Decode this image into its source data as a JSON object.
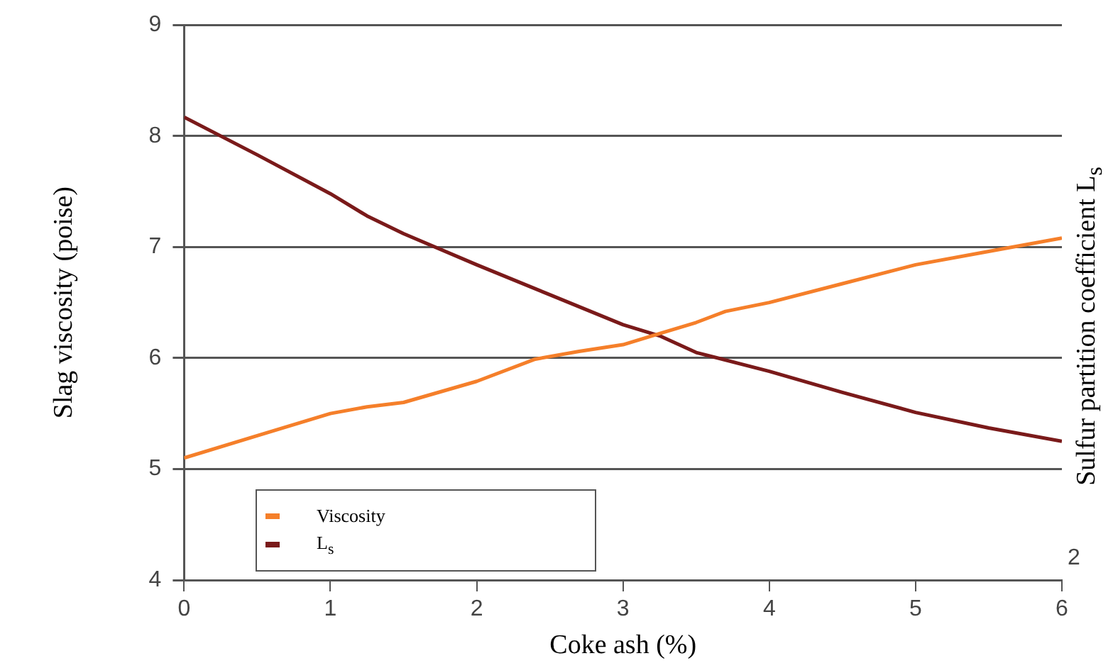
{
  "chart_data": {
    "type": "line",
    "xlabel": "Coke ash (%)",
    "ylabel": "Slag viscosity (poise)",
    "y2label": "Sulfur partition coefficient L$_{s}$",
    "xlim": [
      0,
      6
    ],
    "xticks": [
      0,
      1,
      2,
      3,
      4,
      5,
      6
    ],
    "ylim": [
      4,
      9
    ],
    "yticks": [
      4,
      5,
      6,
      7,
      8,
      9
    ],
    "grid": "y",
    "legend": "bottom left",
    "marker": "none",
    "line_style": "solid",
    "annotations": [
      "2"
    ],
    "series": [
      {
        "name": "Viscosity",
        "color": "#f57f2a",
        "x": [
          0,
          0.5,
          1,
          1.25,
          1.5,
          2,
          2.4,
          2.7,
          3,
          3.25,
          3.5,
          3.7,
          4,
          4.5,
          5,
          5.5,
          6
        ],
        "values": [
          5.1,
          5.3,
          5.5,
          5.56,
          5.6,
          5.79,
          5.99,
          6.06,
          6.12,
          6.22,
          6.32,
          6.42,
          6.5,
          6.67,
          6.84,
          6.96,
          7.08
        ]
      },
      {
        "name": "L$_{s}$",
        "color": "#7a1a1a",
        "x": [
          0,
          0.5,
          1,
          1.25,
          1.5,
          2,
          2.5,
          3,
          3.25,
          3.5,
          4,
          4.5,
          5,
          5.5,
          6
        ],
        "values": [
          8.17,
          7.83,
          7.48,
          7.28,
          7.12,
          6.84,
          6.57,
          6.3,
          6.2,
          6.05,
          5.88,
          5.69,
          5.51,
          5.37,
          5.25
        ]
      }
    ]
  }
}
